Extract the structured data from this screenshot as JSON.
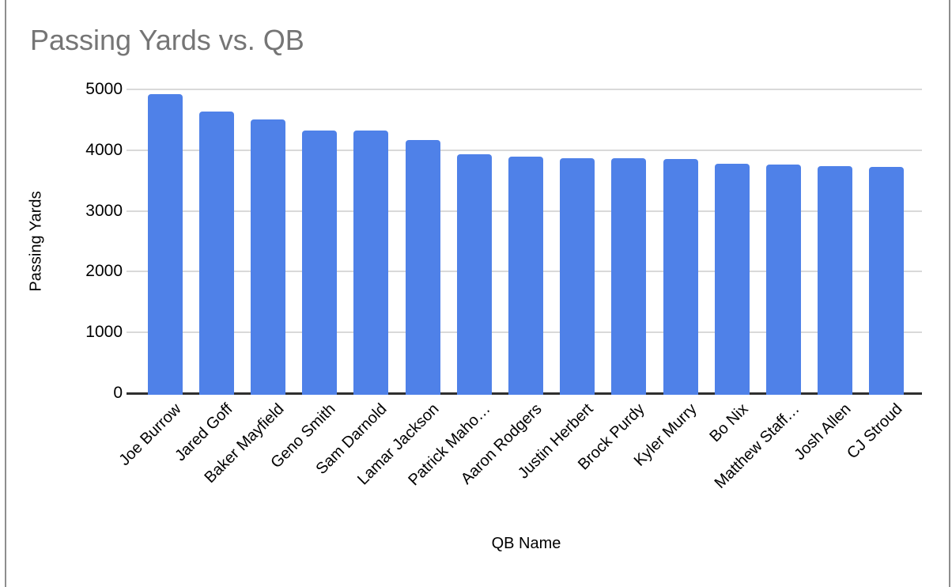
{
  "window": {
    "background_color": "#ffffff",
    "side_border_color": "#8e8e8e"
  },
  "chart_data": {
    "type": "bar",
    "title": "Passing Yards vs. QB",
    "title_color": "#757575",
    "xlabel": "QB Name",
    "ylabel": "Passing Yards",
    "categories": [
      "Joe Burrow",
      "Jared Goff",
      "Baker Mayfield",
      "Geno Smith",
      "Sam Darnold",
      "Lamar Jackson",
      "Patrick Maho…",
      "Aaron Rodgers",
      "Justin Herbert",
      "Brock Purdy",
      "Kyler Murry",
      "Bo Nix",
      "Matthew Staff…",
      "Josh Allen",
      "CJ Stroud"
    ],
    "values": [
      4918,
      4629,
      4500,
      4320,
      4319,
      4172,
      3928,
      3897,
      3870,
      3864,
      3851,
      3775,
      3762,
      3731,
      3727
    ],
    "series_name": "Passing Yards",
    "bar_color": "#4f81e8",
    "ylim": [
      0,
      5000
    ],
    "yticks": [
      0,
      1000,
      2000,
      3000,
      4000,
      5000
    ],
    "y_tick_labels": [
      "0",
      "1000",
      "2000",
      "3000",
      "4000",
      "5000"
    ],
    "grid": true,
    "gridline_color": "#d9d9d9",
    "axis_line_color": "#2f2f2f",
    "legend_position": "none",
    "x_label_rotation_deg": 45
  }
}
